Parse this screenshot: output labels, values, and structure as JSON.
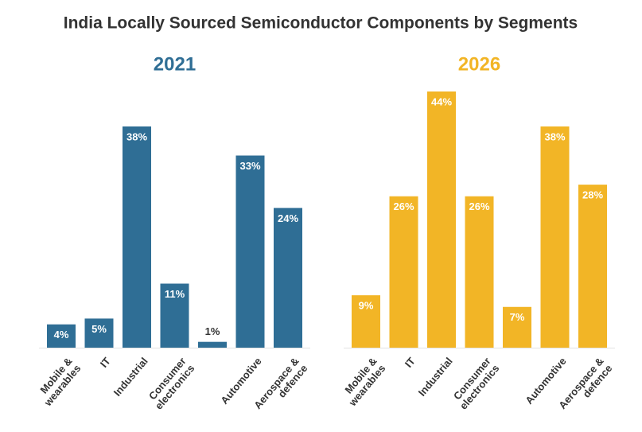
{
  "title": "India Locally Sourced Semiconductor Components by Segments",
  "chart_data": [
    {
      "type": "bar",
      "title": "2021",
      "color": "#2f6e95",
      "categories": [
        "Mobile & wearables",
        "IT",
        "Industrial",
        "Consumer electronics",
        "",
        "Automotive",
        "Aerospace & defence"
      ],
      "values": [
        4,
        5,
        38,
        11,
        1,
        33,
        24
      ],
      "value_labels": [
        "4%",
        "5%",
        "38%",
        "11%",
        "1%",
        "33%",
        "24%"
      ]
    },
    {
      "type": "bar",
      "title": "2026",
      "color": "#f2b526",
      "categories": [
        "Mobile & wearables",
        "IT",
        "Industrial",
        "Consumer electronics",
        "",
        "Automotive",
        "Aerospace & defence"
      ],
      "values": [
        9,
        26,
        44,
        26,
        7,
        38,
        28
      ],
      "value_labels": [
        "9%",
        "26%",
        "44%",
        "26%",
        "7%",
        "38%",
        "28%"
      ]
    }
  ]
}
